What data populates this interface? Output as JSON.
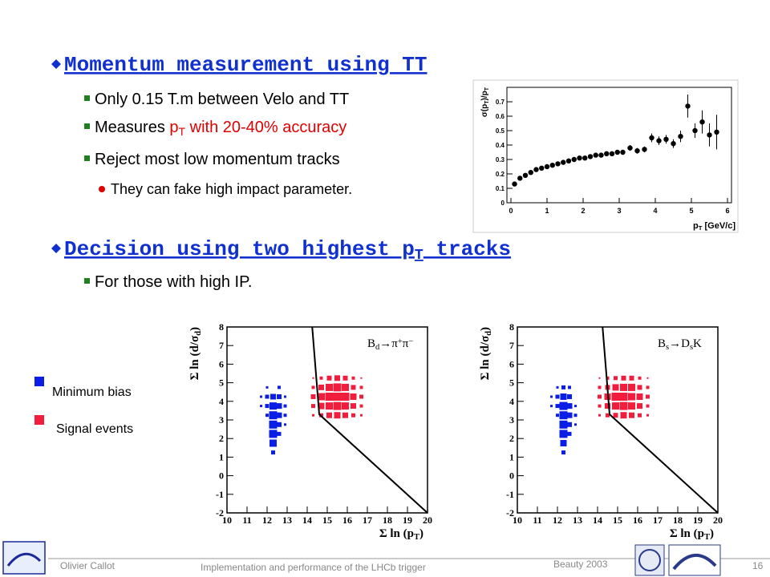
{
  "slide": {
    "sections": [
      {
        "heading": [
          {
            "text": "Momentum measurement using TT"
          }
        ],
        "items": [
          {
            "parts": [
              {
                "text": "Only 0.15 T.m between Velo and TT"
              }
            ],
            "colors": [
              "#000000"
            ]
          },
          {
            "parts": [
              {
                "text": "Measures "
              },
              {
                "text": "p"
              },
              {
                "sub": "T"
              },
              {
                "text": " with 20-40% accuracy"
              }
            ],
            "colors": [
              "#000000",
              "#e00000",
              "#e00000",
              "#e00000"
            ]
          },
          {
            "parts": [
              {
                "text": "Reject most low momentum tracks"
              }
            ],
            "colors": [
              "#000000"
            ]
          }
        ],
        "subitems": [
          {
            "parts": [
              {
                "text": "They can fake high impact parameter."
              }
            ],
            "colors": [
              "#000000"
            ]
          }
        ]
      },
      {
        "heading": [
          {
            "text": "Decision using two highest p"
          },
          {
            "sub": "T"
          },
          {
            "text": " tracks"
          }
        ],
        "items": [
          {
            "parts": [
              {
                "text": "For those with high IP."
              }
            ],
            "colors": [
              "#000000"
            ]
          }
        ],
        "subitems": []
      }
    ]
  },
  "legend": [
    {
      "label": "Minimum bias",
      "color": "#0a1ee6"
    },
    {
      "label": "Signal events",
      "color": "#f01e3c"
    }
  ],
  "footer": {
    "author": "Olivier Callot",
    "title": "Implementation and performance of the LHCb trigger",
    "event": "Beauty 2003",
    "page": "16"
  },
  "chart_data": [
    {
      "type": "scatter",
      "xlabel": [
        {
          "text": "p"
        },
        {
          "sub": "T"
        },
        {
          "text": " [GeV/c]"
        }
      ],
      "ylabel": [
        {
          "text": "σ(p"
        },
        {
          "sub": "T"
        },
        {
          "text": ")/p"
        },
        {
          "sub": "T"
        }
      ],
      "x": [
        0.1,
        0.25,
        0.4,
        0.55,
        0.7,
        0.85,
        1.0,
        1.15,
        1.3,
        1.45,
        1.6,
        1.75,
        1.9,
        2.05,
        2.2,
        2.35,
        2.5,
        2.65,
        2.8,
        2.95,
        3.1,
        3.3,
        3.5,
        3.7,
        3.9,
        4.1,
        4.3,
        4.5,
        4.7,
        4.9,
        5.1,
        5.3,
        5.5,
        5.7
      ],
      "values": [
        0.13,
        0.17,
        0.19,
        0.21,
        0.23,
        0.24,
        0.25,
        0.26,
        0.27,
        0.28,
        0.29,
        0.3,
        0.31,
        0.31,
        0.32,
        0.33,
        0.33,
        0.34,
        0.34,
        0.35,
        0.35,
        0.38,
        0.36,
        0.37,
        0.45,
        0.43,
        0.44,
        0.41,
        0.46,
        0.67,
        0.5,
        0.56,
        0.47,
        0.49
      ],
      "errors": [
        0.01,
        0.01,
        0.01,
        0.01,
        0.01,
        0.01,
        0.01,
        0.01,
        0.01,
        0.01,
        0.01,
        0.01,
        0.01,
        0.01,
        0.01,
        0.01,
        0.01,
        0.01,
        0.01,
        0.01,
        0.01,
        0.02,
        0.02,
        0.02,
        0.03,
        0.03,
        0.03,
        0.03,
        0.04,
        0.08,
        0.05,
        0.08,
        0.08,
        0.12
      ],
      "color": "#000000",
      "xlim": [
        0,
        6
      ],
      "xticks": [
        0,
        1,
        2,
        3,
        4,
        5,
        6
      ],
      "ylim": [
        0,
        0.8
      ],
      "yticks": [
        0,
        0.1,
        0.2,
        0.3,
        0.4,
        0.5,
        0.6,
        0.7
      ]
    },
    {
      "type": "box2d",
      "annotation": [
        {
          "text": "B"
        },
        {
          "sub": "d"
        },
        {
          "text": "→π"
        },
        {
          "sup": "+"
        },
        {
          "text": "π"
        },
        {
          "sup": "−"
        }
      ],
      "xlabel": [
        {
          "text": "Σ ln (p"
        },
        {
          "sub": "T"
        },
        {
          "text": ")"
        }
      ],
      "ylabel": [
        {
          "text": "Σ ln (d/σ"
        },
        {
          "sub": "d"
        },
        {
          "text": ")"
        }
      ],
      "xlim": [
        10,
        20
      ],
      "xticks": [
        10,
        11,
        12,
        13,
        14,
        15,
        16,
        17,
        18,
        19,
        20
      ],
      "ylim": [
        -2,
        8
      ],
      "yticks": [
        -2,
        -1,
        0,
        1,
        2,
        3,
        4,
        5,
        6,
        7,
        8
      ],
      "cut": {
        "x": [
          14.25,
          14.6,
          20
        ],
        "y": [
          8,
          3.3,
          -2
        ]
      },
      "series": [
        {
          "name": "Minimum bias",
          "color": "#0a1ee6",
          "x": [
            12.3,
            12.3,
            12.3,
            12.3,
            12.3,
            12.3,
            12.3,
            12.6,
            12.6,
            12.6,
            12.6,
            12.6,
            12.6,
            12.0,
            12.0,
            12.0,
            12.0,
            12.9,
            12.9,
            12.9,
            12.9,
            11.7,
            11.7
          ],
          "y": [
            1.25,
            1.75,
            2.25,
            2.75,
            3.25,
            3.75,
            4.25,
            2.25,
            2.75,
            3.25,
            3.75,
            4.25,
            4.75,
            3.25,
            3.75,
            4.25,
            4.75,
            2.75,
            3.25,
            3.75,
            4.25,
            3.75,
            4.25
          ],
          "size": [
            0.5,
            0.9,
            1,
            1,
            1,
            0.9,
            0.7,
            0.5,
            0.6,
            0.7,
            0.7,
            0.6,
            0.4,
            0.4,
            0.5,
            0.5,
            0.3,
            0.3,
            0.4,
            0.4,
            0.3,
            0.3,
            0.3
          ]
        },
        {
          "name": "Signal events",
          "color": "#f01e3c",
          "x": [
            14.3,
            14.7,
            15.1,
            15.5,
            15.9,
            16.3,
            16.7,
            14.3,
            14.7,
            15.1,
            15.5,
            15.9,
            16.3,
            16.7,
            14.3,
            14.7,
            15.1,
            15.5,
            15.9,
            16.3,
            16.7,
            14.3,
            14.7,
            15.1,
            15.5,
            15.9,
            16.3,
            16.7,
            14.3,
            14.7,
            15.1,
            15.5,
            15.9,
            16.3,
            16.7
          ],
          "y": [
            3.25,
            3.25,
            3.25,
            3.25,
            3.25,
            3.25,
            3.25,
            3.75,
            3.75,
            3.75,
            3.75,
            3.75,
            3.75,
            3.75,
            4.25,
            4.25,
            4.25,
            4.25,
            4.25,
            4.25,
            4.25,
            4.75,
            4.75,
            4.75,
            4.75,
            4.75,
            4.75,
            4.75,
            5.25,
            5.25,
            5.25,
            5.25,
            5.25,
            5.25,
            5.25
          ],
          "size": [
            0.3,
            0.5,
            0.7,
            0.8,
            0.7,
            0.5,
            0.3,
            0.5,
            0.8,
            0.9,
            1,
            0.9,
            0.7,
            0.4,
            0.6,
            0.9,
            1,
            1,
            1,
            0.8,
            0.5,
            0.4,
            0.7,
            0.9,
            1,
            0.9,
            0.6,
            0.4,
            0.2,
            0.4,
            0.6,
            0.7,
            0.6,
            0.4,
            0.2
          ]
        }
      ]
    },
    {
      "type": "box2d",
      "annotation": [
        {
          "text": "B"
        },
        {
          "sub": "s"
        },
        {
          "text": "→D"
        },
        {
          "sub": "s"
        },
        {
          "text": "K"
        }
      ],
      "xlabel": [
        {
          "text": "Σ ln (p"
        },
        {
          "sub": "T"
        },
        {
          "text": ")"
        }
      ],
      "ylabel": [
        {
          "text": "Σ ln (d/σ"
        },
        {
          "sub": "d"
        },
        {
          "text": ")"
        }
      ],
      "xlim": [
        10,
        20
      ],
      "xticks": [
        10,
        11,
        12,
        13,
        14,
        15,
        16,
        17,
        18,
        19,
        20
      ],
      "ylim": [
        -2,
        8
      ],
      "yticks": [
        -2,
        -1,
        0,
        1,
        2,
        3,
        4,
        5,
        6,
        7,
        8
      ],
      "cut": {
        "x": [
          14.25,
          14.6,
          20
        ],
        "y": [
          8,
          3.3,
          -2
        ]
      },
      "series": [
        {
          "name": "Minimum bias",
          "color": "#0a1ee6",
          "x": [
            12.3,
            12.3,
            12.3,
            12.3,
            12.3,
            12.3,
            12.3,
            12.3,
            12.6,
            12.6,
            12.6,
            12.6,
            12.6,
            12.6,
            12.0,
            12.0,
            12.0,
            12.0,
            12.9,
            12.9,
            12.9,
            11.7,
            11.7
          ],
          "y": [
            1.25,
            1.75,
            2.25,
            2.75,
            3.25,
            3.75,
            4.25,
            4.75,
            2.25,
            2.75,
            3.25,
            3.75,
            4.25,
            4.75,
            3.25,
            3.75,
            4.25,
            4.75,
            2.75,
            3.25,
            3.75,
            3.75,
            4.25
          ],
          "size": [
            0.5,
            0.8,
            1,
            1,
            1,
            1,
            0.8,
            0.5,
            0.5,
            0.6,
            0.7,
            0.7,
            0.6,
            0.4,
            0.4,
            0.5,
            0.5,
            0.3,
            0.3,
            0.4,
            0.3,
            0.3,
            0.3
          ]
        },
        {
          "name": "Signal events",
          "color": "#f01e3c",
          "x": [
            14.1,
            14.5,
            14.9,
            15.3,
            15.7,
            16.1,
            16.5,
            14.1,
            14.5,
            14.9,
            15.3,
            15.7,
            16.1,
            16.5,
            14.1,
            14.5,
            14.9,
            15.3,
            15.7,
            16.1,
            16.5,
            14.1,
            14.5,
            14.9,
            15.3,
            15.7,
            16.1,
            16.5,
            14.1,
            14.5,
            14.9,
            15.3,
            15.7,
            16.1,
            16.5
          ],
          "y": [
            3.25,
            3.25,
            3.25,
            3.25,
            3.25,
            3.25,
            3.25,
            3.75,
            3.75,
            3.75,
            3.75,
            3.75,
            3.75,
            3.75,
            4.25,
            4.25,
            4.25,
            4.25,
            4.25,
            4.25,
            4.25,
            4.75,
            4.75,
            4.75,
            4.75,
            4.75,
            4.75,
            4.75,
            5.25,
            5.25,
            5.25,
            5.25,
            5.25,
            5.25,
            5.25
          ],
          "size": [
            0.3,
            0.5,
            0.6,
            0.8,
            0.7,
            0.5,
            0.3,
            0.4,
            0.7,
            0.9,
            1,
            0.9,
            0.7,
            0.4,
            0.5,
            0.8,
            1,
            1,
            0.9,
            0.8,
            0.5,
            0.4,
            0.6,
            0.8,
            0.9,
            0.9,
            0.6,
            0.4,
            0.2,
            0.4,
            0.5,
            0.6,
            0.6,
            0.4,
            0.2
          ]
        }
      ]
    }
  ]
}
